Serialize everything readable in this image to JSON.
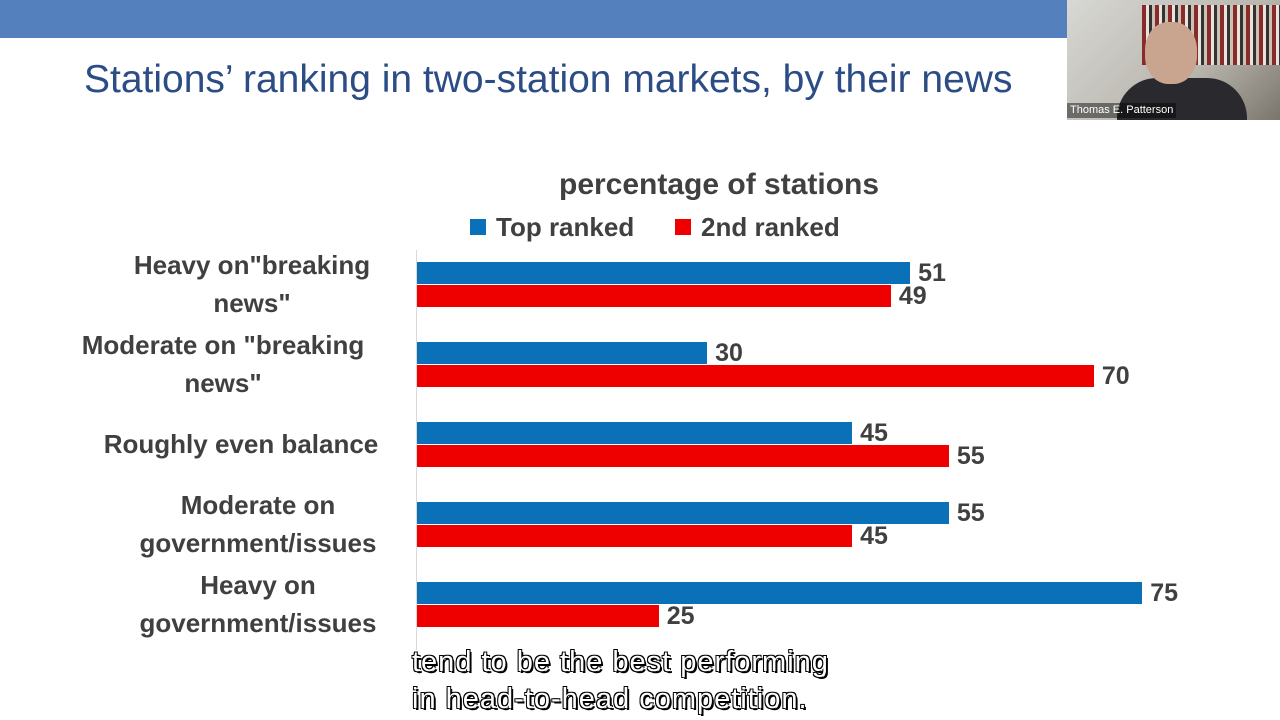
{
  "slide": {
    "title": "Stations’ ranking in two-station markets, by their news"
  },
  "video": {
    "participant_name": "Thomas E. Patterson"
  },
  "caption": {
    "line1": "tend to be the best performing",
    "line2": "in head-to-head competition."
  },
  "chart_data": {
    "type": "bar",
    "orientation": "horizontal",
    "title": "percentage of stations",
    "categories": [
      "Heavy on\"breaking news\"",
      "Moderate on \"breaking news\"",
      "Roughly even balance",
      "Moderate on government/issues",
      "Heavy on government/issues"
    ],
    "category_lines": [
      [
        "Heavy on\"breaking",
        "news\""
      ],
      [
        "Moderate on \"breaking",
        "news\""
      ],
      [
        "Roughly even balance"
      ],
      [
        "Moderate on",
        "government/issues"
      ],
      [
        "Heavy on",
        "government/issues"
      ]
    ],
    "series": [
      {
        "name": "Top ranked",
        "color": "#0A70B8",
        "values": [
          51,
          30,
          45,
          55,
          75
        ]
      },
      {
        "name": "2nd ranked",
        "color": "#EE0000",
        "values": [
          49,
          70,
          55,
          45,
          25
        ]
      }
    ],
    "legend": "top",
    "data_labels": true,
    "grid": false
  }
}
